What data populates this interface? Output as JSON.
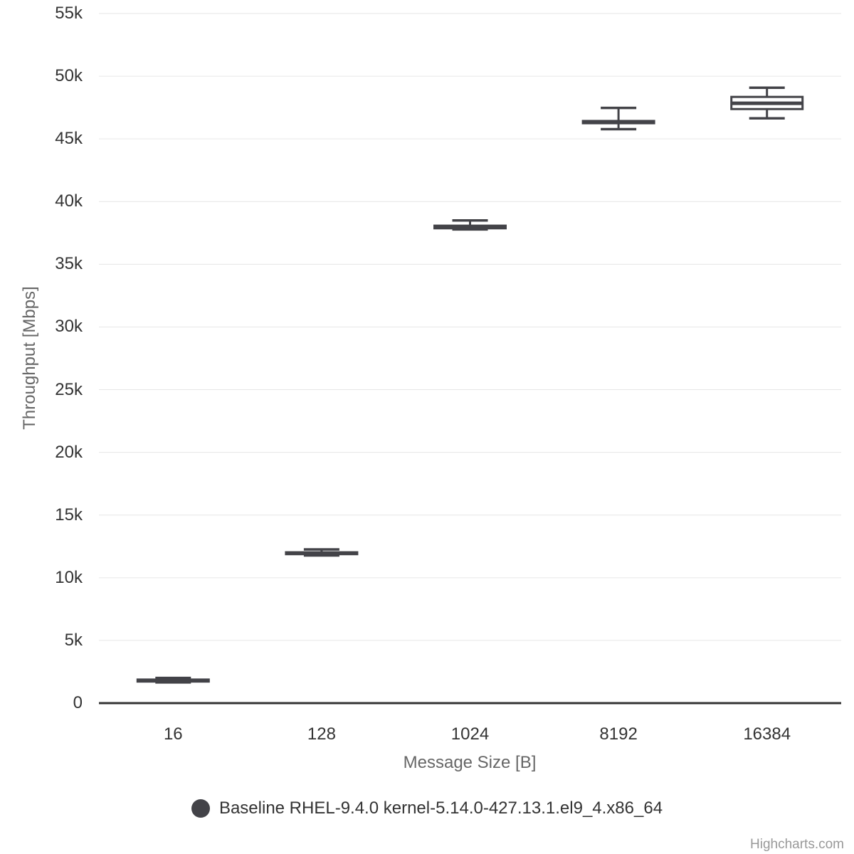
{
  "chart_data": {
    "type": "boxplot",
    "title": "",
    "categories": [
      "16",
      "128",
      "1024",
      "8192",
      "16384"
    ],
    "xlabel": "Message Size [B]",
    "ylabel": "Throughput [Mbps]",
    "ylim": [
      0,
      55000
    ],
    "ytick_interval": 5000,
    "ytick_labels": [
      "0",
      "5k",
      "10k",
      "15k",
      "20k",
      "25k",
      "30k",
      "35k",
      "40k",
      "45k",
      "50k",
      "55k"
    ],
    "grid": true,
    "legend_position": "bottom-center",
    "series": [
      {
        "name": "Baseline RHEL-9.4.0 kernel-5.14.0-427.13.1.el9_4.x86_64",
        "color": "#434348",
        "points": [
          {
            "category": "16",
            "low": 1650,
            "q1": 1720,
            "median": 1800,
            "q3": 1880,
            "high": 2010
          },
          {
            "category": "128",
            "low": 11780,
            "q1": 11880,
            "median": 11950,
            "q3": 12030,
            "high": 12260
          },
          {
            "category": "1024",
            "low": 37780,
            "q1": 37870,
            "median": 37980,
            "q3": 38080,
            "high": 38500
          },
          {
            "category": "8192",
            "low": 45780,
            "q1": 46250,
            "median": 46340,
            "q3": 46430,
            "high": 47470
          },
          {
            "category": "16384",
            "low": 46640,
            "q1": 47380,
            "median": 47840,
            "q3": 48350,
            "high": 49080
          }
        ]
      }
    ]
  },
  "legend": {
    "label": "Baseline RHEL-9.4.0 kernel-5.14.0-427.13.1.el9_4.x86_64",
    "marker_color": "#434348"
  },
  "credits": {
    "label": "Highcharts.com"
  },
  "colors": {
    "series": "#434348",
    "box_fill": "#ffffff",
    "gridline": "#e6e6e6",
    "axis_line": "#333333",
    "tick_label": "#333333",
    "axis_title": "#666666",
    "credits": "#999999"
  }
}
